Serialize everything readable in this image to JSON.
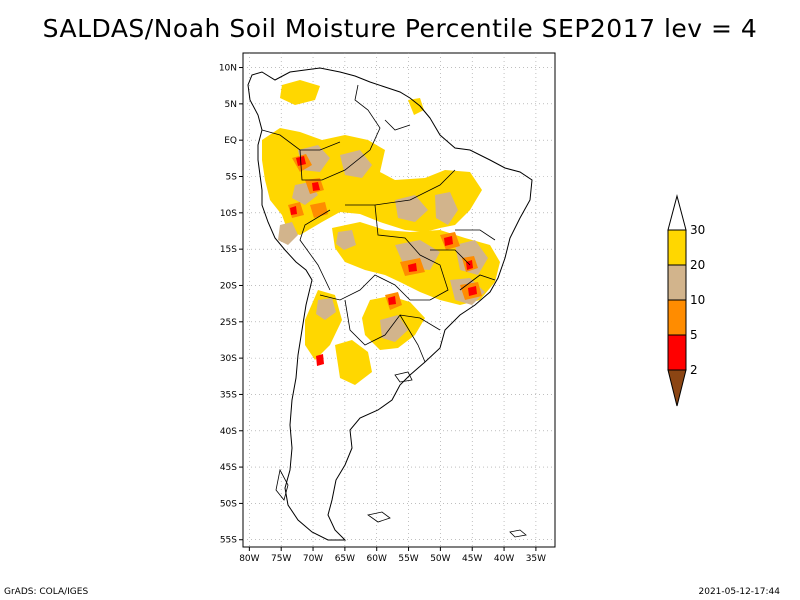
{
  "title": "SALDAS/Noah Soil Moisture Percentile SEP2017 lev = 4",
  "footer": {
    "left": "GrADS: COLA/IGES",
    "right": "2021-05-12-17:44"
  },
  "axes": {
    "lat_labels": [
      "10N",
      "5N",
      "EQ",
      "5S",
      "10S",
      "15S",
      "20S",
      "25S",
      "30S",
      "35S",
      "40S",
      "45S",
      "50S",
      "55S"
    ],
    "lat_values": [
      10,
      5,
      0,
      -5,
      -10,
      -15,
      -20,
      -25,
      -30,
      -35,
      -40,
      -45,
      -50,
      -55
    ],
    "lon_labels": [
      "80W",
      "75W",
      "70W",
      "65W",
      "60W",
      "55W",
      "50W",
      "45W",
      "40W",
      "35W"
    ],
    "lon_values": [
      -80,
      -75,
      -70,
      -65,
      -60,
      -55,
      -50,
      -45,
      -40,
      -35
    ],
    "lat_range": [
      -56,
      12
    ],
    "lon_range": [
      -81,
      -32
    ],
    "grid": true
  },
  "colorbar": {
    "labels": [
      "30",
      "20",
      "10",
      "5",
      "2"
    ],
    "values": [
      30,
      20,
      10,
      5,
      2
    ],
    "colors": {
      "above_30": "#ffffff",
      "20_30": "#ffd700",
      "10_20": "#d2b48c",
      "5_10": "#ff8c00",
      "2_5": "#ff0000",
      "below_2": "#8b4513"
    }
  }
}
